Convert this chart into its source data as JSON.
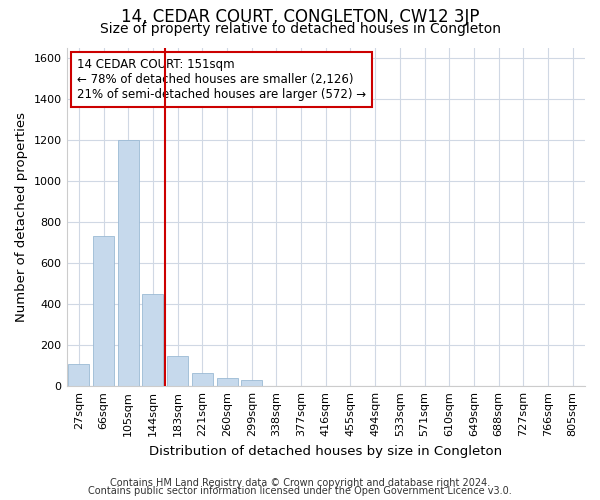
{
  "title": "14, CEDAR COURT, CONGLETON, CW12 3JP",
  "subtitle": "Size of property relative to detached houses in Congleton",
  "xlabel": "Distribution of detached houses by size in Congleton",
  "ylabel": "Number of detached properties",
  "footer_line1": "Contains HM Land Registry data © Crown copyright and database right 2024.",
  "footer_line2": "Contains public sector information licensed under the Open Government Licence v3.0.",
  "bar_labels": [
    "27sqm",
    "66sqm",
    "105sqm",
    "144sqm",
    "183sqm",
    "221sqm",
    "260sqm",
    "299sqm",
    "338sqm",
    "377sqm",
    "416sqm",
    "455sqm",
    "494sqm",
    "533sqm",
    "571sqm",
    "610sqm",
    "649sqm",
    "688sqm",
    "727sqm",
    "766sqm",
    "805sqm"
  ],
  "bar_values": [
    110,
    730,
    1200,
    450,
    145,
    65,
    40,
    30,
    0,
    0,
    0,
    0,
    0,
    0,
    0,
    0,
    0,
    0,
    0,
    0,
    0
  ],
  "bar_color": "#c6d9ec",
  "bar_edge_color": "#9bbad4",
  "property_line_x": 3.5,
  "property_line_color": "#cc0000",
  "annotation_text": "14 CEDAR COURT: 151sqm\n← 78% of detached houses are smaller (2,126)\n21% of semi-detached houses are larger (572) →",
  "annotation_box_facecolor": "#ffffff",
  "annotation_box_edgecolor": "#cc0000",
  "ylim": [
    0,
    1650
  ],
  "yticks": [
    0,
    200,
    400,
    600,
    800,
    1000,
    1200,
    1400,
    1600
  ],
  "fig_facecolor": "#ffffff",
  "plot_facecolor": "#ffffff",
  "grid_color": "#d0d8e4",
  "title_fontsize": 12,
  "subtitle_fontsize": 10,
  "axis_label_fontsize": 9.5,
  "tick_fontsize": 8,
  "footer_fontsize": 7
}
